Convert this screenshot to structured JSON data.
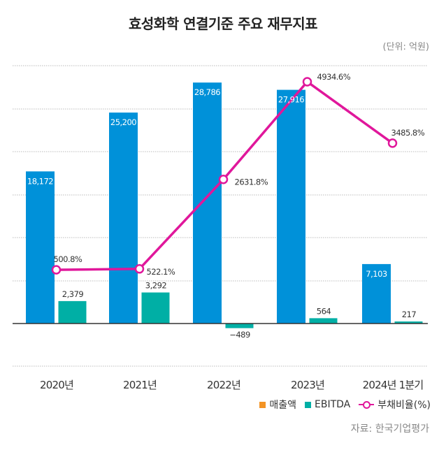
{
  "header": {
    "title": "효성화학 연결기준 주요 재무지표",
    "unit": "(단위: 억원)"
  },
  "source": "자료: 한국기업평가",
  "colors": {
    "sales": "#0091D9",
    "ebitda": "#00AFA5",
    "debt_ratio": "#E0179B",
    "legend_sales_marker": "#F39425",
    "grid": "#BBBBBB",
    "axis": "#333333"
  },
  "legend": [
    {
      "label": "매출액",
      "marker": "square",
      "color_key": "legend_sales_marker"
    },
    {
      "label": "EBITDA",
      "marker": "square",
      "color_key": "ebitda"
    },
    {
      "label": "부채비율(%)",
      "marker": "line-circle",
      "color_key": "debt_ratio"
    }
  ],
  "chart_data": {
    "type": "bar",
    "title": "효성화학 연결기준 주요 재무지표",
    "unit": "억원",
    "categories": [
      "2020년",
      "2021년",
      "2022년",
      "2023년",
      "2024년 1분기"
    ],
    "series": [
      {
        "name": "매출액",
        "type": "bar",
        "values": [
          18172,
          25200,
          28786,
          27916,
          7103
        ],
        "labels": [
          "18,172",
          "25,200",
          "28,786",
          "27,916",
          "7,103"
        ]
      },
      {
        "name": "EBITDA",
        "type": "bar",
        "values": [
          2379,
          3292,
          -489,
          564,
          217
        ],
        "labels": [
          "2,379",
          "3,292",
          "−489",
          "564",
          "217"
        ]
      },
      {
        "name": "부채비율(%)",
        "type": "line",
        "axis": "secondary",
        "values": [
          500.8,
          522.1,
          2631.8,
          4934.6,
          3485.8
        ],
        "labels": [
          "500.8%",
          "522.1%",
          "2631.8%",
          "4934.6%",
          "3485.8%"
        ]
      }
    ],
    "xlabel": "",
    "ylabel": "",
    "grid": true,
    "legend_position": "bottom-right"
  }
}
